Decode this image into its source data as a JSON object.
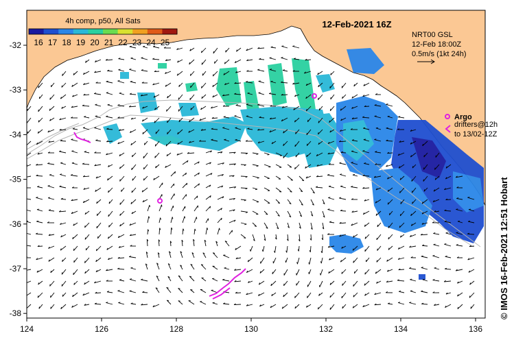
{
  "title": "12-Feb-2021 16Z",
  "colorbar": {
    "title": "4h comp, p50, All Sats",
    "ticks": [
      "16",
      "17",
      "18",
      "19",
      "20",
      "21",
      "22",
      "23",
      "24",
      "25"
    ],
    "colors": [
      "#1a1aa0",
      "#1f4fd0",
      "#2a86e8",
      "#2ab8d8",
      "#2ad0a0",
      "#6adc50",
      "#d8e030",
      "#f0a020",
      "#e05a18",
      "#a01810"
    ]
  },
  "velocity_legend": {
    "source": "NRT00 GSL",
    "time": "12-Feb 18:00Z",
    "scale": "0.5m/s (1kt 24h)"
  },
  "argo_legend": {
    "label": "Argo"
  },
  "drifter_legend": {
    "line1": "drifters@12h",
    "line2": "to 13/02-12Z"
  },
  "side_text": "© IMOS 16-Feb-2021 12:51 Hobart",
  "axes": {
    "x_ticks": [
      "124",
      "126",
      "128",
      "130",
      "132",
      "134",
      "136"
    ],
    "y_ticks": [
      "-32",
      "-33",
      "-34",
      "-35",
      "-36",
      "-37",
      "-38"
    ]
  },
  "colors": {
    "land": "#fbc894",
    "ocean": "#ffffff",
    "argo": "#e020e0",
    "drifter": "#e020e0",
    "bathy": "#b4b4b4"
  }
}
